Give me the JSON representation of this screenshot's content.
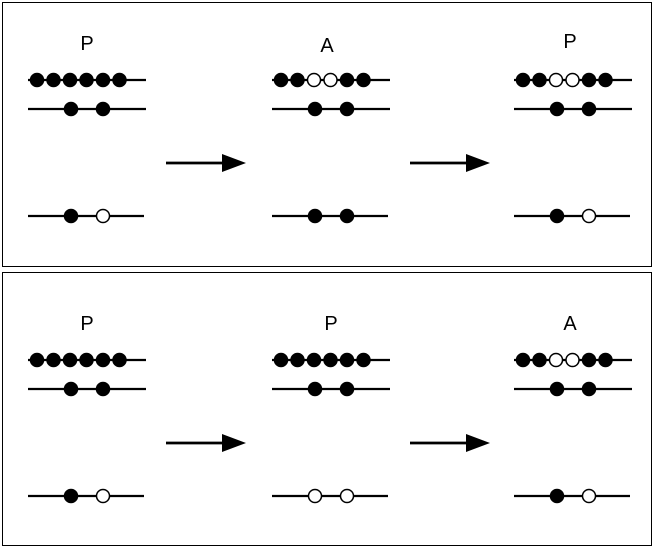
{
  "panels": [
    {
      "stages": [
        {
          "label": "P",
          "strands": [
            [
              "filled",
              "filled",
              "filled",
              "filled",
              "filled",
              "filled"
            ],
            [
              "filled",
              "filled"
            ],
            [
              "filled",
              "open"
            ]
          ]
        },
        {
          "label": "A",
          "strands": [
            [
              "filled",
              "filled",
              "open",
              "open",
              "filled",
              "filled"
            ],
            [
              "filled",
              "filled"
            ],
            [
              "filled",
              "filled"
            ]
          ]
        },
        {
          "label": "P",
          "strands": [
            [
              "filled",
              "filled",
              "open",
              "open",
              "filled",
              "filled"
            ],
            [
              "filled",
              "filled"
            ],
            [
              "filled",
              "open"
            ]
          ]
        }
      ]
    },
    {
      "stages": [
        {
          "label": "P",
          "strands": [
            [
              "filled",
              "filled",
              "filled",
              "filled",
              "filled",
              "filled"
            ],
            [
              "filled",
              "filled"
            ],
            [
              "filled",
              "open"
            ]
          ]
        },
        {
          "label": "P",
          "strands": [
            [
              "filled",
              "filled",
              "filled",
              "filled",
              "filled",
              "filled"
            ],
            [
              "filled",
              "filled"
            ],
            [
              "open",
              "open"
            ]
          ]
        },
        {
          "label": "A",
          "strands": [
            [
              "filled",
              "filled",
              "open",
              "open",
              "filled",
              "filled"
            ],
            [
              "filled",
              "filled"
            ],
            [
              "filled",
              "open"
            ]
          ]
        }
      ]
    }
  ]
}
